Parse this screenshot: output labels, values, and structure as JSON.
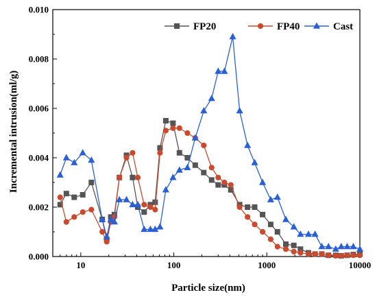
{
  "chart_data": {
    "type": "line",
    "title": "",
    "xlabel": "Particle size(nm)",
    "ylabel": "Incremental intrusion(ml/g)",
    "x_scale": "log",
    "xlim": [
      5,
      10000
    ],
    "ylim": [
      0,
      0.01
    ],
    "x_ticks": [
      10,
      100,
      1000,
      10000
    ],
    "x_tick_labels": [
      "10",
      "100",
      "1000",
      "10000"
    ],
    "y_ticks": [
      0,
      0.002,
      0.004,
      0.006,
      0.008,
      0.01
    ],
    "y_tick_labels": [
      "0.000",
      "0.002",
      "0.004",
      "0.006",
      "0.008",
      "0.010"
    ],
    "grid": false,
    "legend_position": "top-right",
    "series": [
      {
        "name": "FP20",
        "color": "#555555",
        "marker": "square",
        "x": [
          6,
          7,
          8.5,
          10.5,
          13,
          17,
          19,
          21,
          23,
          26,
          31,
          36,
          41,
          48,
          56,
          63,
          71,
          82,
          98,
          115,
          140,
          170,
          210,
          255,
          300,
          350,
          410,
          510,
          620,
          740,
          900,
          1100,
          1300,
          1600,
          1950,
          2300,
          2800,
          3300,
          3900,
          4600,
          5500,
          6300,
          7300,
          8500,
          10000
        ],
        "y": [
          0.0021,
          0.00255,
          0.0024,
          0.0025,
          0.003,
          0.0015,
          0.0007,
          0.0016,
          0.0017,
          0.0032,
          0.0041,
          0.0032,
          0.002,
          0.0018,
          0.0021,
          0.0022,
          0.0044,
          0.0055,
          0.0054,
          0.0042,
          0.004,
          0.0037,
          0.0034,
          0.0031,
          0.0029,
          0.0029,
          0.0027,
          0.0021,
          0.002,
          0.002,
          0.0017,
          0.0013,
          0.001,
          0.0005,
          0.00045,
          0.0003,
          0.00015,
          0.0001,
          0.0001,
          5e-05,
          5e-05,
          3e-05,
          5e-05,
          8e-05,
          0.0001
        ]
      },
      {
        "name": "FP40",
        "color": "#c94a2e",
        "marker": "circle",
        "x": [
          6,
          7,
          8.5,
          10.5,
          13,
          17,
          19,
          21,
          23,
          26,
          31,
          36,
          41,
          48,
          56,
          63,
          71,
          82,
          98,
          115,
          140,
          170,
          210,
          255,
          300,
          350,
          410,
          510,
          620,
          740,
          900,
          1100,
          1300,
          1600,
          1950,
          2300,
          2800,
          3300,
          3900,
          4600,
          5500,
          6300,
          7300,
          8500,
          10000
        ],
        "y": [
          0.0024,
          0.0014,
          0.0016,
          0.0018,
          0.0019,
          0.001,
          0.0006,
          0.0014,
          0.0016,
          0.0032,
          0.004,
          0.0042,
          0.0032,
          0.0021,
          0.002,
          0.0019,
          0.0042,
          0.0051,
          0.0052,
          0.0052,
          0.005,
          0.0048,
          0.0045,
          0.0036,
          0.0032,
          0.003,
          0.0029,
          0.002,
          0.0016,
          0.0013,
          0.001,
          0.0007,
          0.0004,
          0.0003,
          0.0002,
          0.00015,
          0.0001,
          0.0001,
          0.0001,
          5e-05,
          3e-05,
          3e-05,
          5e-05,
          5e-05,
          5e-05
        ]
      },
      {
        "name": "Cast",
        "color": "#2a5fd6",
        "marker": "triangle",
        "x": [
          6,
          7,
          8.5,
          10.5,
          13,
          17,
          19,
          21,
          23,
          26,
          31,
          36,
          41,
          48,
          56,
          63,
          71,
          82,
          98,
          115,
          140,
          170,
          210,
          255,
          300,
          350,
          430,
          510,
          620,
          740,
          900,
          1100,
          1300,
          1600,
          1950,
          2300,
          2800,
          3300,
          3900,
          4600,
          5500,
          6300,
          7300,
          8500,
          10000
        ],
        "y": [
          0.0033,
          0.004,
          0.0038,
          0.0042,
          0.0039,
          0.0015,
          0.0008,
          0.0015,
          0.0014,
          0.0023,
          0.0023,
          0.0021,
          0.0021,
          0.0011,
          0.0011,
          0.0011,
          0.0012,
          0.0027,
          0.0032,
          0.0035,
          0.0036,
          0.0048,
          0.0059,
          0.0064,
          0.0075,
          0.0075,
          0.0089,
          0.0059,
          0.0045,
          0.0038,
          0.003,
          0.0023,
          0.0024,
          0.0015,
          0.0012,
          0.0009,
          0.0009,
          0.0009,
          0.0004,
          0.0004,
          0.0003,
          0.0004,
          0.0004,
          0.0004,
          0.0003
        ]
      }
    ]
  }
}
